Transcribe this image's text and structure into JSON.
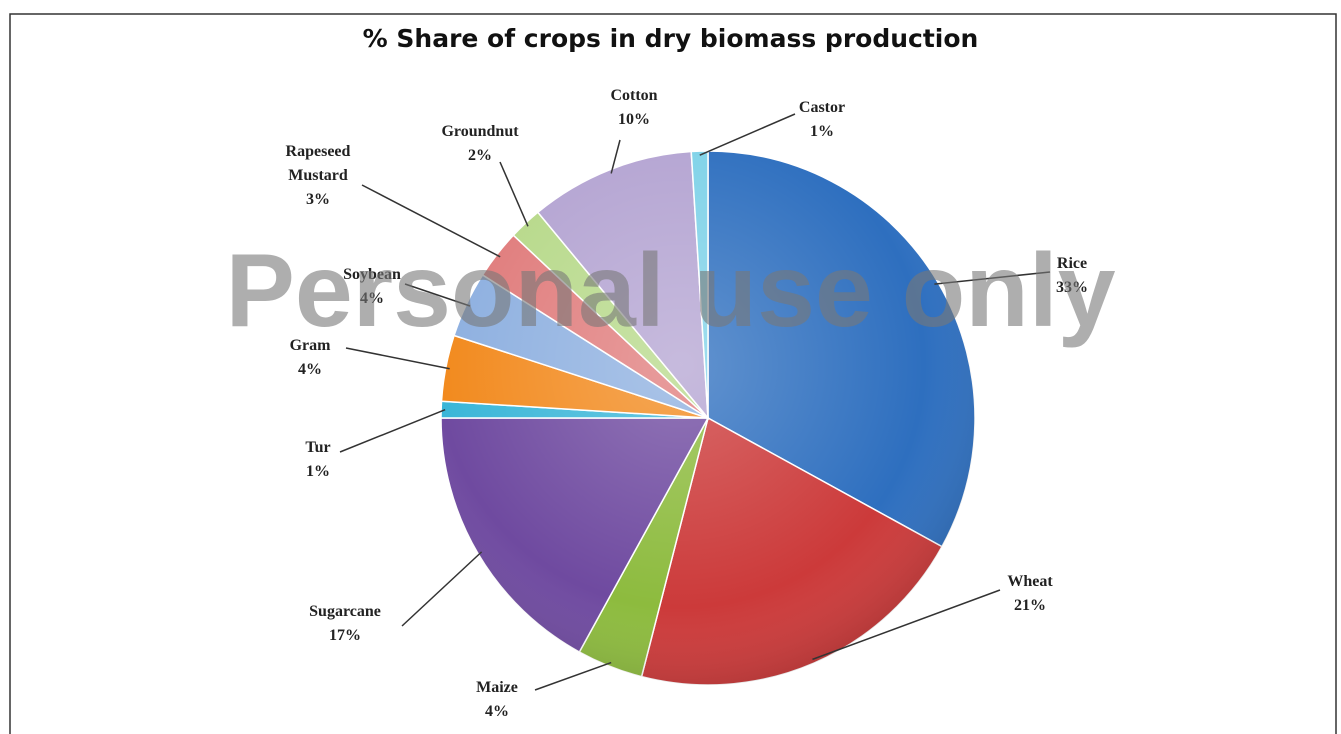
{
  "chart_data": {
    "type": "pie",
    "title": "% Share of crops in dry biomass production",
    "watermark": "Personal use only",
    "categories": [
      "Rice",
      "Wheat",
      "Maize",
      "Sugarcane",
      "Tur",
      "Gram",
      "Soybean",
      "Rapeseed Mustard",
      "Groundnut",
      "Cotton",
      "Castor"
    ],
    "values": [
      33,
      21,
      4,
      17,
      1,
      4,
      4,
      3,
      2,
      10,
      1
    ],
    "value_labels": [
      "33%",
      "21%",
      "4%",
      "17%",
      "1%",
      "4%",
      "4%",
      "3%",
      "2%",
      "10%",
      "1%"
    ],
    "colors": [
      "#2e6fbf",
      "#cc3a3a",
      "#8dbb3e",
      "#6f4aa0",
      "#3ab6d8",
      "#f28a1e",
      "#8eb0e0",
      "#e07c7c",
      "#b7d98a",
      "#b4a4d2",
      "#7fd2e8"
    ]
  }
}
